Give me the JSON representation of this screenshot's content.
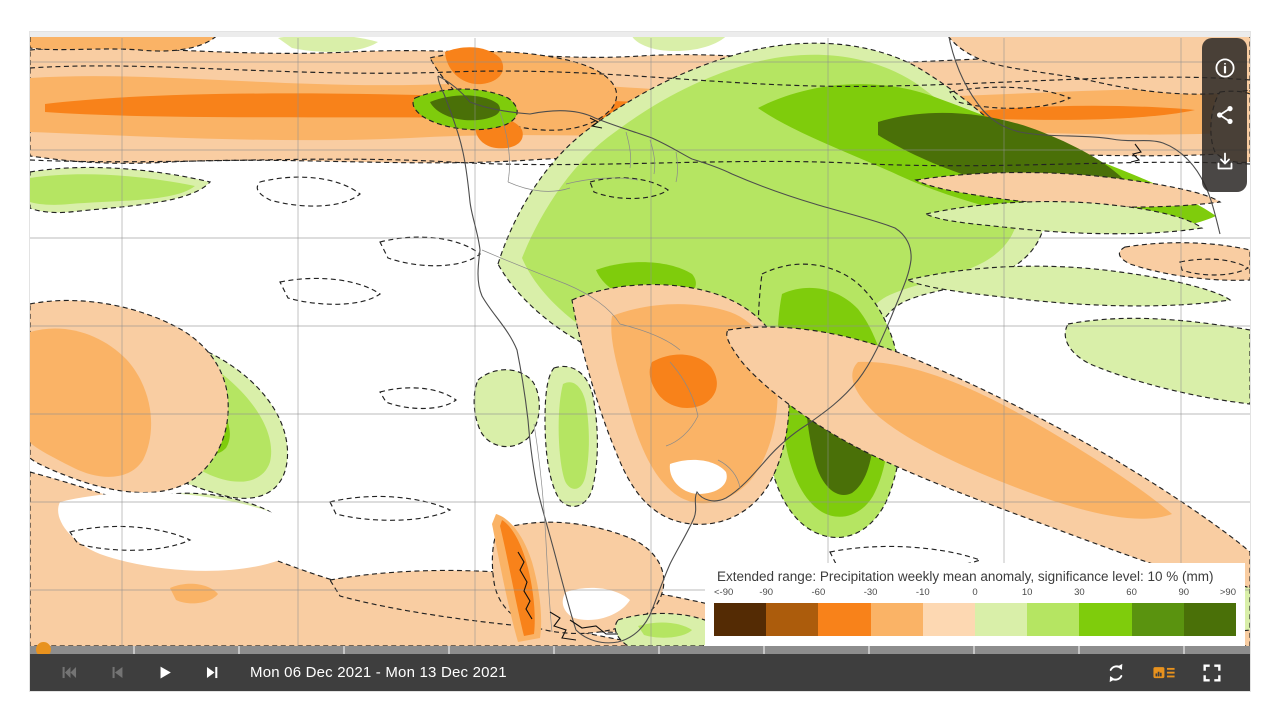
{
  "legend": {
    "title": "Extended range: Precipitation weekly mean anomaly, significance level: 10 % (mm)",
    "tick_labels": [
      "<-90",
      "-90",
      "-60",
      "-30",
      "-10",
      "0",
      "10",
      "30",
      "60",
      "90",
      ">90"
    ],
    "colors": [
      "#542b04",
      "#ac5c0c",
      "#f8821a",
      "#fab366",
      "#fdd8b2",
      "#d9efa9",
      "#b5e562",
      "#7fcc0c",
      "#5a930f",
      "#4a7008"
    ]
  },
  "player": {
    "current_step_label": "Mon 06 Dec 2021 - Mon 13 Dec 2021",
    "buttons": {
      "skip_to_start": "First frame",
      "step_back": "Previous frame",
      "play": "Play",
      "step_forward": "Next frame",
      "loop": "Replay",
      "toggle_legend": "Toggle legend",
      "fullscreen": "Fullscreen"
    },
    "progress": {
      "position_percent": 0,
      "handle_color": "#e8921e",
      "track_color": "#8d8d8d"
    }
  },
  "toolbar": {
    "buttons": {
      "info": "Information",
      "share": "Share",
      "download": "Download"
    }
  },
  "map": {
    "region": "South America and adjacent oceans with West Africa at top right",
    "grid_color": "#8f8f8f",
    "coastline_color": "#4d4d4d",
    "significance_contours": "dashed black outlines around significant anomaly regions"
  },
  "chart_data": {
    "type": "heatmap",
    "title": "Extended range: Precipitation weekly mean anomaly, significance level: 10 % (mm)",
    "units": "mm",
    "valid_range": "Mon 06 Dec 2021 - Mon 13 Dec 2021",
    "scale_breakpoints": [
      -90,
      -60,
      -30,
      -10,
      0,
      10,
      30,
      60,
      90
    ],
    "scale_colors": [
      "#542b04",
      "#ac5c0c",
      "#f8821a",
      "#fab366",
      "#fdd8b2",
      "#d9efa9",
      "#b5e562",
      "#7fcc0c",
      "#5a930f",
      "#4a7008"
    ],
    "notable_features": [
      "strong dry (orange, -30 to -60 mm) zonal band across equatorial Pacific at top of map",
      "wet (green, +30 to >90 mm) anomaly over Amazon basin extending east over tropical Atlantic",
      "dark green wet core off southeast Brazil coast",
      "dry band over Paraguay / northern Argentina with -60 mm core",
      "wet diagonal patch in southeast Pacific",
      "broad dry diagonal band across the South Atlantic",
      "dry strip along Chilean Patagonia coast"
    ]
  }
}
